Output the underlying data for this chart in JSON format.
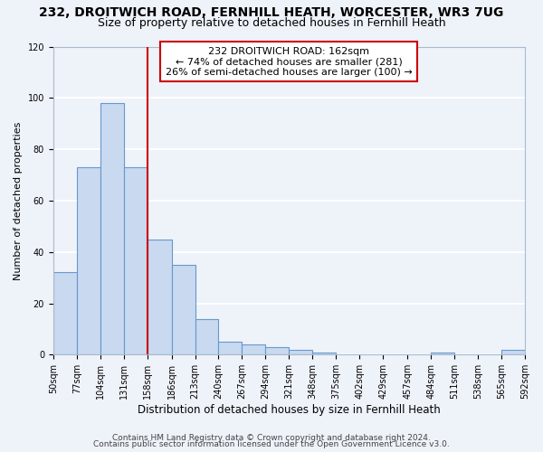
{
  "title": "232, DROITWICH ROAD, FERNHILL HEATH, WORCESTER, WR3 7UG",
  "subtitle": "Size of property relative to detached houses in Fernhill Heath",
  "xlabel": "Distribution of detached houses by size in Fernhill Heath",
  "ylabel": "Number of detached properties",
  "bin_edges": [
    50,
    77,
    104,
    131,
    158,
    186,
    213,
    240,
    267,
    294,
    321,
    348,
    375,
    402,
    429,
    457,
    484,
    511,
    538,
    565,
    592
  ],
  "counts": [
    32,
    73,
    98,
    73,
    45,
    35,
    14,
    5,
    4,
    3,
    2,
    1,
    0,
    0,
    0,
    0,
    1,
    0,
    0,
    2
  ],
  "bar_color": "#c8d9f0",
  "bar_edge_color": "#6699cc",
  "vline_x": 158,
  "vline_color": "#cc0000",
  "annotation_box_text": "232 DROITWICH ROAD: 162sqm\n← 74% of detached houses are smaller (281)\n26% of semi-detached houses are larger (100) →",
  "annotation_box_color": "#cc0000",
  "ylim": [
    0,
    120
  ],
  "yticks": [
    0,
    20,
    40,
    60,
    80,
    100,
    120
  ],
  "background_color": "#eef2f9",
  "grid_color": "#ffffff",
  "footer_line1": "Contains HM Land Registry data © Crown copyright and database right 2024.",
  "footer_line2": "Contains public sector information licensed under the Open Government Licence v3.0.",
  "title_fontsize": 10,
  "subtitle_fontsize": 9,
  "xlabel_fontsize": 8.5,
  "ylabel_fontsize": 8,
  "tick_fontsize": 7,
  "annot_fontsize": 8,
  "footer_fontsize": 6.5
}
